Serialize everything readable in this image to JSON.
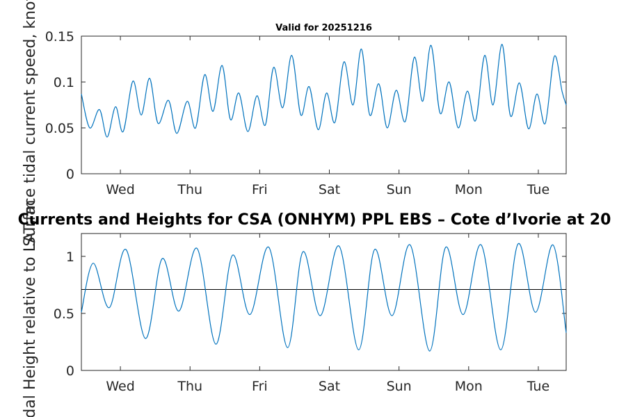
{
  "chart_data": [
    {
      "type": "line",
      "title": "Valid for 20251216",
      "ylabel": "Surface tidal current speed, knots",
      "xlabel": "",
      "ylim": [
        0,
        0.15
      ],
      "yticks": [
        "0",
        "0.05",
        "0.1",
        "0.15"
      ],
      "yticks_values": [
        0,
        0.05,
        0.1,
        0.15
      ],
      "xlim_days": [
        0,
        6.96
      ],
      "xtick_positions_days": [
        0.56,
        1.56,
        2.56,
        3.56,
        4.56,
        5.56,
        6.56
      ],
      "xtick_labels": [
        "Wed",
        "Thu",
        "Fri",
        "Sat",
        "Sun",
        "Mon",
        "Tue"
      ],
      "series_color": "#0072BD",
      "series": [
        {
          "name": "current speed",
          "x": [
            0,
            0.12,
            0.26,
            0.37,
            0.49,
            0.6,
            0.74,
            0.86,
            0.98,
            1.1,
            1.25,
            1.37,
            1.52,
            1.64,
            1.77,
            1.89,
            2.02,
            2.14,
            2.26,
            2.39,
            2.52,
            2.64,
            2.76,
            2.89,
            3.02,
            3.15,
            3.27,
            3.4,
            3.52,
            3.64,
            3.77,
            3.9,
            4.02,
            4.14,
            4.27,
            4.39,
            4.52,
            4.65,
            4.78,
            4.9,
            5.02,
            5.15,
            5.28,
            5.41,
            5.54,
            5.66,
            5.79,
            5.91,
            6.04,
            6.16,
            6.29,
            6.42,
            6.54,
            6.66,
            6.79,
            6.9,
            6.96
          ],
          "values": [
            0.087,
            0.05,
            0.07,
            0.04,
            0.073,
            0.046,
            0.101,
            0.064,
            0.104,
            0.055,
            0.08,
            0.044,
            0.079,
            0.05,
            0.108,
            0.068,
            0.118,
            0.059,
            0.088,
            0.046,
            0.085,
            0.053,
            0.116,
            0.072,
            0.129,
            0.064,
            0.095,
            0.048,
            0.088,
            0.056,
            0.122,
            0.075,
            0.136,
            0.064,
            0.098,
            0.05,
            0.091,
            0.057,
            0.127,
            0.079,
            0.14,
            0.066,
            0.1,
            0.05,
            0.09,
            0.058,
            0.129,
            0.075,
            0.141,
            0.063,
            0.099,
            0.049,
            0.087,
            0.055,
            0.128,
            0.09,
            0.075
          ]
        }
      ]
    },
    {
      "type": "line",
      "title": "Currents and Heights for CSA (ONHYM) PPL EBS  – Cote d’Ivorie at 20",
      "ylabel": "Tidal Height relative to LAT, m",
      "xlabel": "",
      "ylim": [
        0,
        1.2
      ],
      "yticks": [
        "0",
        "0.5",
        "1"
      ],
      "yticks_values": [
        0,
        0.5,
        1
      ],
      "xlim_days": [
        0,
        6.96
      ],
      "xtick_positions_days": [
        0.56,
        1.56,
        2.56,
        3.56,
        4.56,
        5.56,
        6.56
      ],
      "xtick_labels": [
        "Wed",
        "Thu",
        "Fri",
        "Sat",
        "Sun",
        "Mon",
        "Tue"
      ],
      "reference_line": 0.71,
      "series_color": "#0072BD",
      "series": [
        {
          "name": "tidal height",
          "x": [
            0,
            0.17,
            0.4,
            0.64,
            0.92,
            1.16,
            1.4,
            1.66,
            1.93,
            2.17,
            2.42,
            2.69,
            2.96,
            3.18,
            3.43,
            3.7,
            3.98,
            4.21,
            4.46,
            4.72,
            5.0,
            5.23,
            5.48,
            5.74,
            6.02,
            6.27,
            6.52,
            6.77,
            6.96
          ],
          "values": [
            0.51,
            0.94,
            0.55,
            1.06,
            0.28,
            0.98,
            0.52,
            1.07,
            0.23,
            1.01,
            0.49,
            1.08,
            0.2,
            1.04,
            0.48,
            1.09,
            0.18,
            1.06,
            0.48,
            1.1,
            0.17,
            1.08,
            0.49,
            1.1,
            0.18,
            1.11,
            0.51,
            1.1,
            0.33
          ]
        }
      ]
    }
  ]
}
